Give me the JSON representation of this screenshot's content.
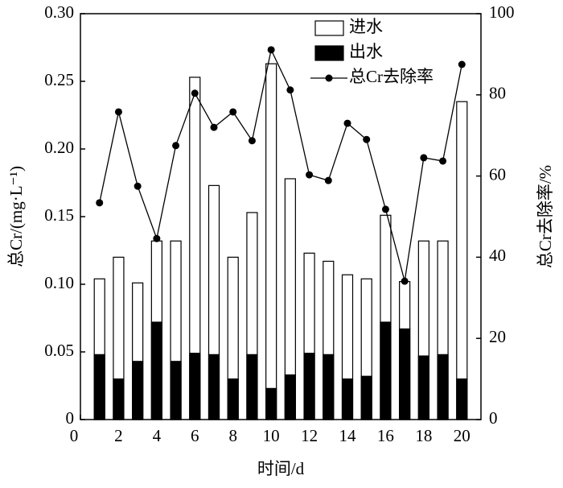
{
  "chart_data": {
    "type": "bar",
    "xlabel": "时间/d",
    "ylabel": "总Cr/(mg·L⁻¹)",
    "y2label": "总Cr去除率/%",
    "x": [
      1,
      2,
      3,
      4,
      5,
      6,
      7,
      8,
      9,
      10,
      11,
      12,
      13,
      14,
      15,
      16,
      17,
      18,
      19,
      20
    ],
    "series": [
      {
        "name": "进水",
        "color": "#ffffff",
        "values": [
          0.104,
          0.12,
          0.101,
          0.132,
          0.132,
          0.253,
          0.173,
          0.12,
          0.153,
          0.263,
          0.178,
          0.123,
          0.117,
          0.107,
          0.104,
          0.151,
          0.102,
          0.132,
          0.132,
          0.235
        ]
      },
      {
        "name": "出水",
        "color": "#000000",
        "values": [
          0.048,
          0.03,
          0.043,
          0.072,
          0.043,
          0.049,
          0.048,
          0.03,
          0.048,
          0.023,
          0.033,
          0.049,
          0.048,
          0.03,
          0.032,
          0.072,
          0.067,
          0.047,
          0.048,
          0.03
        ]
      },
      {
        "name": "总Cr去除率",
        "color": "#000000",
        "type": "line",
        "axis": "y2",
        "values": [
          53.4,
          75.8,
          57.5,
          44.6,
          67.5,
          80.4,
          72.0,
          75.8,
          68.7,
          91.1,
          81.2,
          60.3,
          58.9,
          73.0,
          69.0,
          51.8,
          34.1,
          64.5,
          63.7,
          87.5
        ]
      }
    ],
    "xlim": [
      0,
      21
    ],
    "xticks": [
      0,
      2,
      4,
      6,
      8,
      10,
      12,
      14,
      16,
      18,
      20
    ],
    "ylim": [
      0,
      0.3
    ],
    "yticks": [
      0,
      0.05,
      {
        "value": 0.1,
        "label": "0.10"
      },
      0.15,
      {
        "value": 0.2,
        "label": "0.20"
      },
      0.25,
      {
        "value": 0.3,
        "label": "0.30"
      }
    ],
    "y2lim": [
      0,
      100
    ],
    "y2ticks": [
      0,
      20,
      40,
      60,
      80,
      100
    ],
    "legend": "upper-center"
  }
}
